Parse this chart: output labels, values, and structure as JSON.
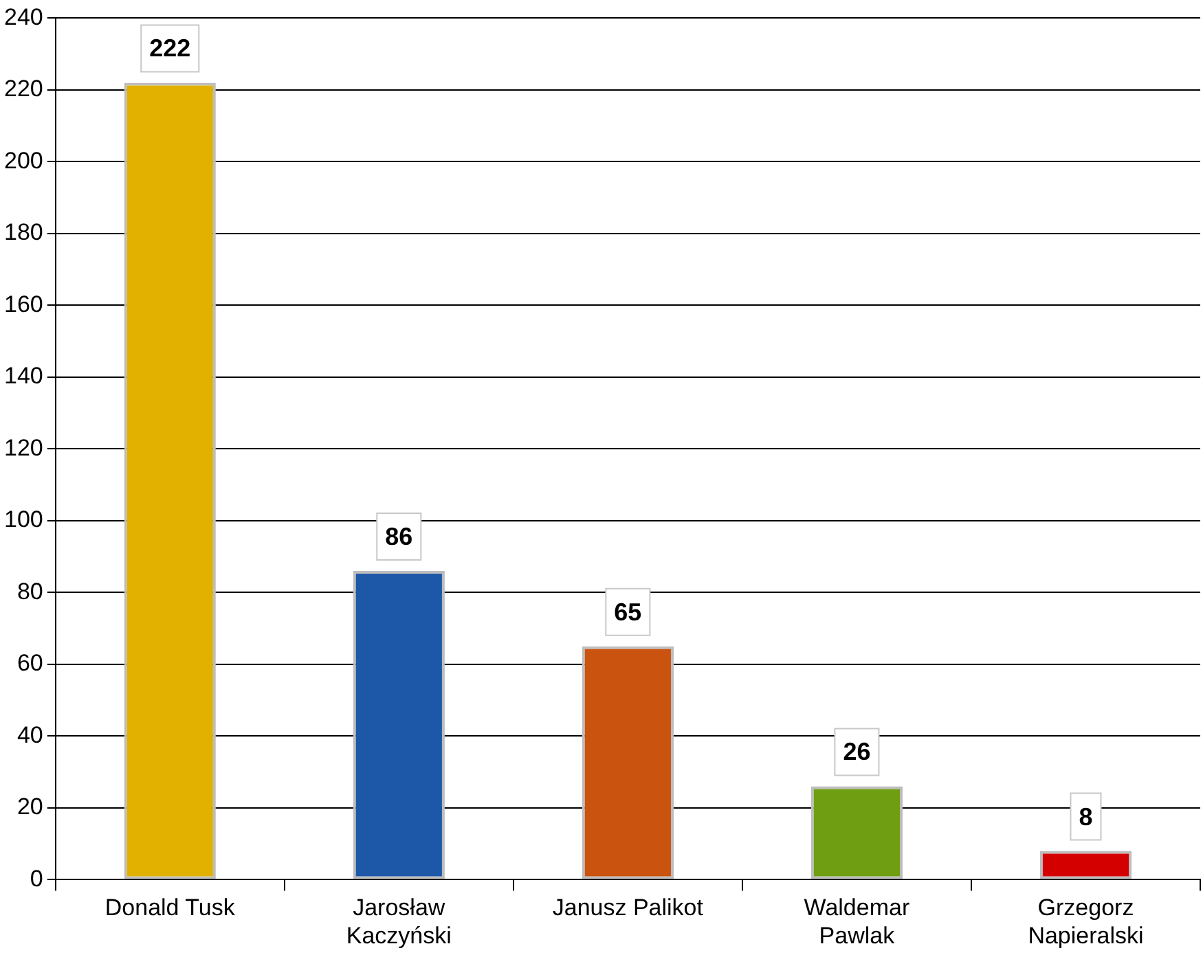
{
  "chart_data": {
    "type": "bar",
    "categories": [
      "Donald Tusk",
      "Jarosław Kaczyński",
      "Janusz Palikot",
      "Waldemar Pawlak",
      "Grzegorz Napieralski"
    ],
    "values": [
      222,
      86,
      65,
      26,
      8
    ],
    "colors": [
      "#e2b100",
      "#1d58a8",
      "#c9530f",
      "#6f9e12",
      "#d40000"
    ],
    "ylim": [
      0,
      240
    ],
    "yticks": [
      0,
      20,
      40,
      60,
      80,
      100,
      120,
      140,
      160,
      180,
      200,
      220,
      240
    ],
    "grid": "y",
    "data_labels": true,
    "legend": false
  }
}
